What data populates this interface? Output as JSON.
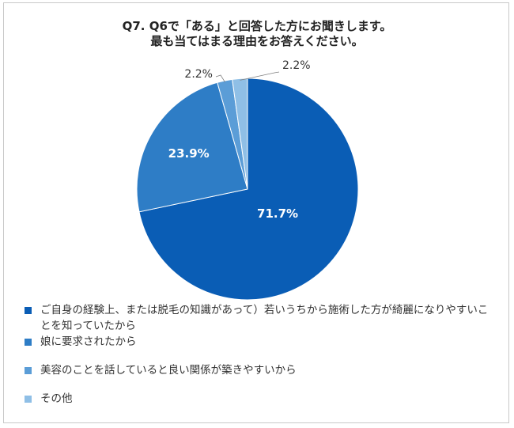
{
  "title_lines": [
    "Q7.  Q6で「ある」と回答した方にお聞きします。",
    "最も当てはまる理由をお答えください。"
  ],
  "chart_data": {
    "type": "pie",
    "title": "Q7.  Q6で「ある」と回答した方にお聞きします。 最も当てはまる理由をお答えください。",
    "start": "top",
    "direction": "clockwise",
    "legend_position": "bottom",
    "slices": [
      {
        "label": "ご自身の経験上、または脱毛の知識があって）若いうちから施術した方が綺麗になりやすいことを知っていたから",
        "value": 71.7,
        "value_label": "71.7%",
        "color": "#0a5db5"
      },
      {
        "label": "娘に要求されたから",
        "value": 23.9,
        "value_label": "23.9%",
        "color": "#2e7dc6"
      },
      {
        "label": "美容のことを話していると良い関係が築きやすいから",
        "value": 2.2,
        "value_label": "2.2%",
        "color": "#5b9dd7"
      },
      {
        "label": "その他",
        "value": 2.2,
        "value_label": "2.2%",
        "color": "#8fbfe6"
      }
    ]
  }
}
